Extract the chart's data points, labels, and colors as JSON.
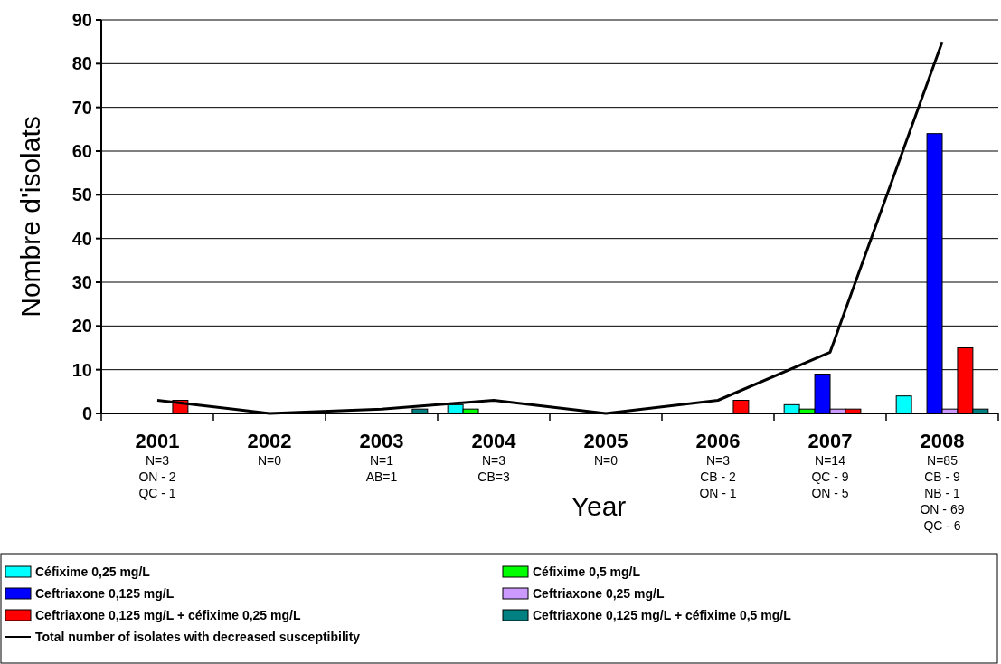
{
  "chart_data": {
    "type": "bar",
    "xlabel": "Year",
    "ylabel": "Nombre d'isolats",
    "categories": [
      "2001\nN=3\nON - 2\nQC - 1",
      "2002\nN=0",
      "2003\nN=1\nAB=1",
      "2004\nN=3\nCB=3",
      "2005\nN=0",
      "2006\nN=3\nCB - 2\nON - 1",
      "2007\nN=14\nQC - 9\nON - 5",
      "2008\nN=85\nCB - 9\nNB - 1\nON - 69\nQC - 6"
    ],
    "series": [
      {
        "name": "Céfixime 0,25 mg/L",
        "color": "#00ffff",
        "values": [
          0,
          0,
          0,
          2,
          0,
          0,
          2,
          4
        ]
      },
      {
        "name": "Céfixime 0,5 mg/L",
        "color": "#00ff00",
        "values": [
          0,
          0,
          0,
          1,
          0,
          0,
          1,
          0
        ]
      },
      {
        "name": "Ceftriaxone 0,125 mg/L",
        "color": "#0000ff",
        "values": [
          0,
          0,
          0,
          0,
          0,
          0,
          9,
          64
        ]
      },
      {
        "name": "Ceftriaxone 0,25 mg/L",
        "color": "#cc99ff",
        "values": [
          0,
          0,
          0,
          0,
          0,
          0,
          1,
          1
        ]
      },
      {
        "name": "Ceftriaxone 0,125 mg/L + céfixime 0,25 mg/L",
        "color": "#ff0000",
        "values": [
          3,
          0,
          0,
          0,
          0,
          3,
          1,
          15
        ]
      },
      {
        "name": "Ceftriaxone 0,125 mg/L + céfixime 0,5 mg/L",
        "color": "#008080",
        "values": [
          0,
          0,
          1,
          0,
          0,
          0,
          0,
          1
        ]
      },
      {
        "name": "Total number of isolates with decreased susceptibility",
        "type": "line",
        "color": "#000000",
        "values": [
          3,
          0,
          1,
          3,
          0,
          3,
          14,
          85
        ]
      }
    ],
    "ylim": [
      0,
      90
    ],
    "yticks": [
      0,
      10,
      20,
      30,
      40,
      50,
      60,
      70,
      80,
      90
    ],
    "grid": "y",
    "legend": "bottom",
    "marker": "none",
    "line_style": "solid"
  }
}
